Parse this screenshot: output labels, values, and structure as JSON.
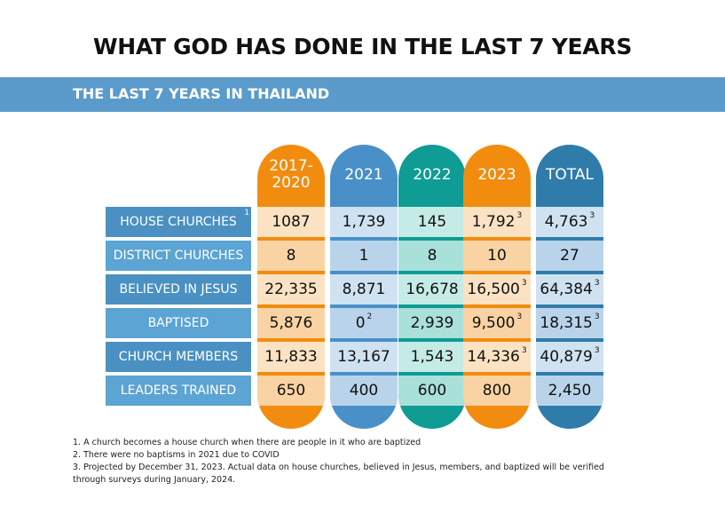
{
  "title": "WHAT GOD HAS DONE IN THE LAST 7 YEARS",
  "section": "THE LAST 7 YEARS IN THAILAND",
  "row_labels": [
    {
      "label": "HOUSE CHURCHES",
      "sup": "1"
    },
    {
      "label": "DISTRICT CHURCHES",
      "sup": ""
    },
    {
      "label": "BELIEVED IN JESUS",
      "sup": ""
    },
    {
      "label": "BAPTISED",
      "sup": ""
    },
    {
      "label": "CHURCH MEMBERS",
      "sup": ""
    },
    {
      "label": "LEADERS TRAINED",
      "sup": ""
    }
  ],
  "columns": [
    {
      "header": "2017-\n2020",
      "head_color": "#f28c0f",
      "cell_light": "#fbe2c2",
      "cell_dark": "#f9d3a3",
      "values": [
        [
          "1087",
          ""
        ],
        [
          "8",
          ""
        ],
        [
          "22,335",
          ""
        ],
        [
          "5,876",
          ""
        ],
        [
          "11,833",
          ""
        ],
        [
          "650",
          ""
        ]
      ]
    },
    {
      "header": "2021",
      "head_color": "#4a90c8",
      "cell_light": "#cfe2f1",
      "cell_dark": "#b9d4ea",
      "values": [
        [
          "1,739",
          ""
        ],
        [
          "1",
          ""
        ],
        [
          "8,871",
          ""
        ],
        [
          "0",
          "2"
        ],
        [
          "13,167",
          ""
        ],
        [
          "400",
          ""
        ]
      ]
    },
    {
      "header": "2022",
      "head_color": "#0f9c94",
      "cell_light": "#c5ebe6",
      "cell_dark": "#a9e0da",
      "values": [
        [
          "145",
          ""
        ],
        [
          "8",
          ""
        ],
        [
          "16,678",
          ""
        ],
        [
          "2,939",
          ""
        ],
        [
          "1,543",
          ""
        ],
        [
          "600",
          ""
        ]
      ]
    },
    {
      "header": "2023",
      "head_color": "#f28c0f",
      "cell_light": "#fbe2c2",
      "cell_dark": "#f9d3a3",
      "values": [
        [
          "1,792",
          "3"
        ],
        [
          "10",
          ""
        ],
        [
          "16,500",
          "3"
        ],
        [
          "9,500",
          "3"
        ],
        [
          "14,336",
          "3"
        ],
        [
          "800",
          ""
        ]
      ]
    },
    {
      "header": "TOTAL",
      "head_color": "#2f7cab",
      "cell_light": "#cfe2f1",
      "cell_dark": "#b9d4ea",
      "values": [
        [
          "4,763",
          "3"
        ],
        [
          "27",
          ""
        ],
        [
          "64,384",
          "3"
        ],
        [
          "18,315",
          "3"
        ],
        [
          "40,879",
          "3"
        ],
        [
          "2,450",
          ""
        ]
      ]
    }
  ],
  "footnotes": [
    "1. A church becomes a house church when there are people in it who are baptized",
    "2. There were no baptisms in 2021 due to COVID",
    "3. Projected by December 31, 2023. Actual data on house churches, believed in Jesus, members, and baptized will be verified",
    "through surveys during January, 2024."
  ]
}
